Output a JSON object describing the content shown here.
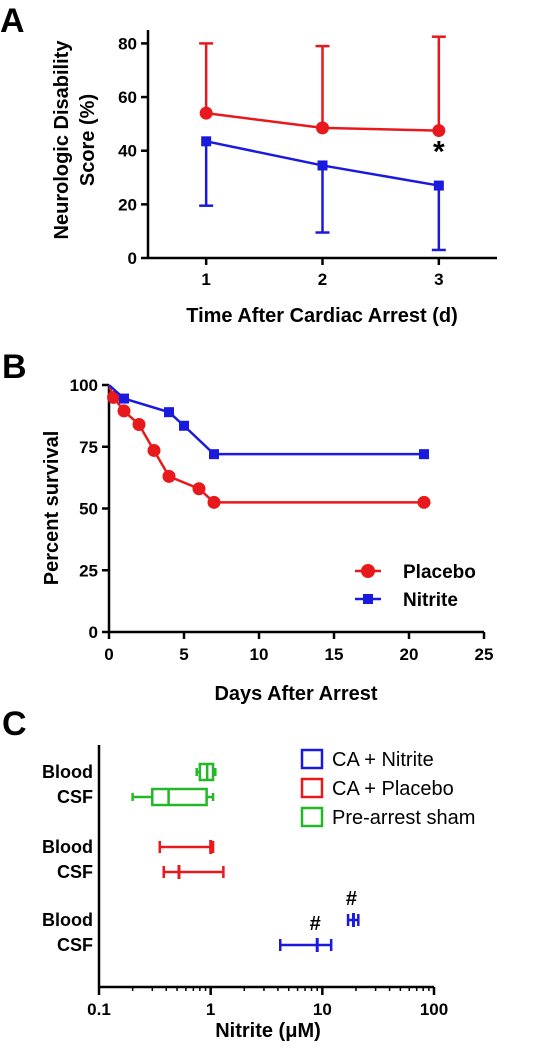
{
  "colors": {
    "red": "#e8191d",
    "blue": "#1a1adf",
    "green": "#22b827"
  },
  "chart_data": [
    {
      "panel": "A",
      "type": "line",
      "xlabel": "Time After Cardiac Arrest (d)",
      "ylabel_lines": [
        "Neurologic Disability",
        "Score (%)"
      ],
      "x": [
        1,
        2,
        3
      ],
      "xlim": [
        0.5,
        3.5
      ],
      "xticks": [
        1,
        2,
        3
      ],
      "ylim": [
        0,
        85
      ],
      "yticks": [
        0,
        20,
        40,
        60,
        80
      ],
      "series": [
        {
          "color": "red",
          "marker": "circle",
          "values": [
            54,
            48.5,
            47.5
          ],
          "error": [
            26,
            30.5,
            35
          ],
          "error_dir": "up"
        },
        {
          "color": "blue",
          "marker": "square",
          "values": [
            43.5,
            34.5,
            27
          ],
          "error": [
            24,
            25,
            24
          ],
          "error_dir": "down"
        }
      ],
      "annotations": [
        {
          "text": "*",
          "x": 3,
          "y": 36
        }
      ]
    },
    {
      "panel": "B",
      "type": "line",
      "xlabel": "Days After Arrest",
      "ylabel": "Percent survival",
      "xlim": [
        0,
        25
      ],
      "xticks": [
        0,
        5,
        10,
        15,
        20,
        25
      ],
      "ylim": [
        0,
        100
      ],
      "yticks": [
        0,
        25,
        50,
        75,
        100
      ],
      "legend_position": "bottom-right",
      "series": [
        {
          "name": "Placebo",
          "color": "red",
          "marker": "circle",
          "x": [
            0,
            0.3,
            1,
            2,
            3,
            4,
            6,
            7,
            21
          ],
          "y": [
            100,
            95,
            89.5,
            84,
            73.5,
            63,
            58,
            52.5,
            52.5
          ],
          "marker_start": 1
        },
        {
          "name": "Nitrite",
          "color": "blue",
          "marker": "square",
          "x": [
            0,
            1,
            4,
            5,
            7,
            21
          ],
          "y": [
            100,
            94.5,
            89,
            83.5,
            72,
            72
          ],
          "marker_start": 1
        }
      ]
    },
    {
      "panel": "C",
      "type": "box",
      "xlabel": "Nitrite (μM)",
      "xscale": "log",
      "xlim": [
        0.1,
        100
      ],
      "xticks": [
        0.1,
        1,
        10,
        100
      ],
      "xtick_labels": [
        "0.1",
        "1",
        "10",
        "100"
      ],
      "category_labels": [
        "Blood",
        "CSF",
        "Blood",
        "CSF",
        "Blood",
        "CSF"
      ],
      "legend": [
        {
          "name": "CA + Nitrite",
          "color": "blue"
        },
        {
          "name": "CA + Placebo",
          "color": "red"
        },
        {
          "name": "Pre-arrest sham",
          "color": "green"
        }
      ],
      "rows": [
        {
          "color": "green",
          "style": "box",
          "min": 0.75,
          "q1": 0.8,
          "median": 0.93,
          "q3": 1.05,
          "max": 1.1
        },
        {
          "color": "green",
          "style": "box",
          "min": 0.2,
          "q1": 0.3,
          "median": 0.42,
          "q3": 0.92,
          "max": 1.05
        },
        {
          "color": "red",
          "style": "range",
          "min": 0.35,
          "center": 1.0,
          "max": 1.05
        },
        {
          "color": "red",
          "style": "range",
          "min": 0.38,
          "center": 0.52,
          "max": 1.3
        },
        {
          "color": "blue",
          "style": "range",
          "min": 17,
          "center": 19,
          "max": 21,
          "mark": "#"
        },
        {
          "color": "blue",
          "style": "range",
          "min": 4.2,
          "center": 9,
          "max": 12,
          "mark": "#"
        }
      ]
    }
  ]
}
